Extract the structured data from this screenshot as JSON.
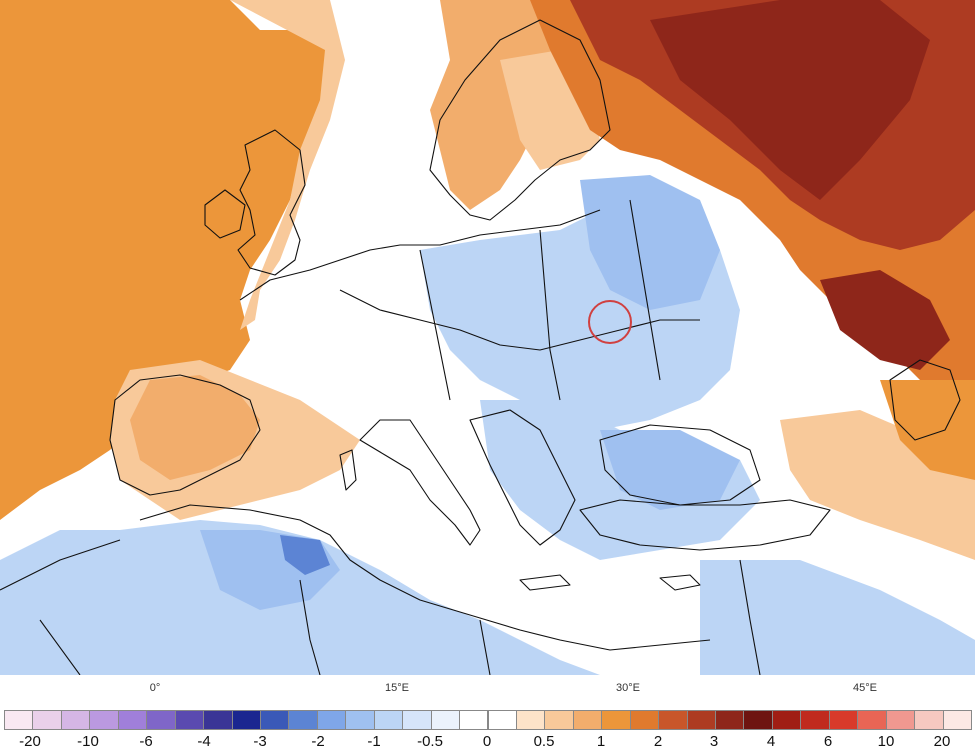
{
  "map": {
    "type": "choropleth anomaly map",
    "region": "Europe",
    "marker": {
      "shape": "circle",
      "color": "#d04040"
    },
    "lon_labels": [
      "0°",
      "15°E",
      "30°E",
      "45°E"
    ]
  },
  "colorbar": {
    "labels": [
      "-20",
      "-10",
      "-6",
      "-4",
      "-3",
      "-2",
      "-1",
      "-0.5",
      "0",
      "0.5",
      "1",
      "2",
      "3",
      "4",
      "6",
      "10",
      "20"
    ],
    "colors": [
      "#f9e8f2",
      "#ead0ea",
      "#d5b6e5",
      "#bb99e0",
      "#a07fda",
      "#7f66c8",
      "#5a4ab0",
      "#3a3596",
      "#1b2690",
      "#3a59b8",
      "#5c84d4",
      "#7fa6e8",
      "#9fc0f0",
      "#bcd5f5",
      "#d6e5fa",
      "#ebf2fc",
      "#ffffff",
      "#ffffff",
      "#fde3c9",
      "#f8c99a",
      "#f2ad6c",
      "#ec963a",
      "#e07a2e",
      "#c8562a",
      "#ad3b22",
      "#8e261a",
      "#6e1410",
      "#a01e14",
      "#c02a1e",
      "#d83a2a",
      "#e86555",
      "#f09890",
      "#f6c8c0",
      "#fce8e4"
    ]
  }
}
